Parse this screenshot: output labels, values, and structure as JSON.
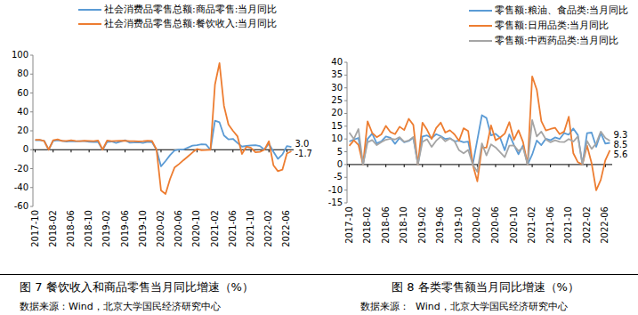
{
  "chart_data": [
    {
      "type": "line",
      "title": "图 7 餐饮收入和商品零售当月同比增速（%）",
      "source": "数据来源：Wind，北京大学国民经济研究中心",
      "categories": [
        "2017-10",
        null,
        null,
        null,
        "2018-02",
        null,
        null,
        null,
        "2018-06",
        null,
        null,
        null,
        "2018-10",
        null,
        null,
        null,
        "2019-02",
        null,
        null,
        null,
        "2019-06",
        null,
        null,
        null,
        "2019-10",
        null,
        null,
        null,
        "2020-02",
        null,
        null,
        null,
        "2020-06",
        null,
        null,
        null,
        "2020-10",
        null,
        null,
        null,
        "2021-02",
        null,
        null,
        null,
        "2021-06",
        null,
        null,
        null,
        "2021-10",
        null,
        null,
        null,
        "2022-02",
        null,
        null,
        null,
        "2022-06",
        null
      ],
      "series": [
        {
          "name": "社会消费品零售总额:商品零售:当月同比",
          "color": "#5b9bd5",
          "values": [
            10.0,
            10.3,
            9.4,
            0,
            9.4,
            10.1,
            9.4,
            8.5,
            9.0,
            8.8,
            9.0,
            9.1,
            8.4,
            8.1,
            8.2,
            0,
            8.2,
            8.7,
            7.2,
            8.6,
            10.0,
            7.5,
            7.6,
            7.8,
            7.2,
            8.3,
            7.9,
            0,
            -17.6,
            -12.0,
            -5.8,
            -0.8,
            0.2,
            0.2,
            2.2,
            4.3,
            4.9,
            5.8,
            5.6,
            0,
            30.7,
            29.0,
            15.1,
            10.9,
            11.5,
            7.2,
            3.3,
            4.0,
            4.6,
            4.8,
            3.9,
            0,
            6.5,
            -2.1,
            -9.7,
            -5.0,
            3.9,
            3.0
          ]
        },
        {
          "name": "社会消费品零售总额:餐饮收入:当月同比",
          "color": "#ed7d31",
          "values": [
            10.5,
            10.4,
            9.2,
            0,
            9.9,
            10.9,
            9.3,
            9.2,
            9.9,
            9.3,
            9.1,
            9.6,
            9.3,
            9.0,
            9.7,
            0,
            9.7,
            9.0,
            9.2,
            9.4,
            9.5,
            9.1,
            9.0,
            8.8,
            9.0,
            9.4,
            9.2,
            0,
            -43.1,
            -46.8,
            -31.1,
            -18.9,
            -15.2,
            -11.0,
            -7.0,
            -2.9,
            0.8,
            -0.6,
            -0.4,
            0,
            68.9,
            91.6,
            46.4,
            26.6,
            20.0,
            14.3,
            -4.5,
            3.1,
            2.0,
            -2.7,
            -2.2,
            0,
            8.9,
            -16.4,
            -22.7,
            -21.1,
            -4.0,
            -1.7
          ]
        }
      ],
      "annotations": [
        {
          "text": "3.0",
          "series": 0,
          "index": 57
        },
        {
          "text": "-1.7",
          "series": 1,
          "index": 57
        }
      ],
      "ylim": [
        -60,
        100
      ],
      "yticks": [
        -60,
        -40,
        -20,
        0,
        20,
        40,
        60,
        80,
        100
      ],
      "grid": false,
      "legend": "top"
    },
    {
      "type": "line",
      "title": "图 8 各类零售额当月同比增速（%）",
      "source": "数据来源：  Wind，北京大学国民经济研究中心",
      "categories": [
        "2017-10",
        null,
        null,
        null,
        "2018-02",
        null,
        null,
        null,
        "2018-06",
        null,
        null,
        null,
        "2018-10",
        null,
        null,
        null,
        "2019-02",
        null,
        null,
        null,
        "2019-06",
        null,
        null,
        null,
        "2019-10",
        null,
        null,
        null,
        "2020-02",
        null,
        null,
        null,
        "2020-06",
        null,
        null,
        null,
        "2020-10",
        null,
        null,
        null,
        "2021-02",
        null,
        null,
        null,
        "2021-06",
        null,
        null,
        null,
        "2021-10",
        null,
        null,
        null,
        "2022-02",
        null,
        null,
        null,
        "2022-06",
        null
      ],
      "series": [
        {
          "name": "零售额:粮油、食品类:当月同比",
          "color": "#5b9bd5",
          "values": [
            9.0,
            9.8,
            10.4,
            0,
            10.0,
            12.1,
            8.3,
            9.1,
            11.0,
            10.5,
            8.1,
            10.4,
            8.7,
            9.2,
            10.5,
            0,
            11.0,
            11.4,
            10.3,
            11.9,
            11.1,
            10.0,
            10.3,
            9.1,
            9.3,
            8.7,
            9.0,
            0,
            9.7,
            19.3,
            18.2,
            11.4,
            12.0,
            10.4,
            5.6,
            11.8,
            7.7,
            4.0,
            7.5,
            0,
            3.9,
            9.4,
            7.6,
            10.1,
            9.5,
            10.6,
            10.0,
            12.3,
            11.7,
            14.1,
            11.5,
            0,
            12.3,
            12.5,
            6.9,
            12.3,
            8.2,
            8.5
          ]
        },
        {
          "name": "零售额:日用品类:当月同比",
          "color": "#ed7d31",
          "values": [
            7.3,
            9.5,
            7.7,
            0,
            16.9,
            12.4,
            10.7,
            11.8,
            15.1,
            12.7,
            11.9,
            14.8,
            13.5,
            17.9,
            15.5,
            0,
            16.4,
            13.6,
            10.0,
            14.3,
            16.4,
            12.5,
            13.4,
            11.8,
            9.3,
            14.2,
            13.1,
            0,
            -6.6,
            6.6,
            6.6,
            15.3,
            9.5,
            10.6,
            12.1,
            16.6,
            9.7,
            13.4,
            8.8,
            0,
            34.5,
            29.3,
            17.0,
            13.3,
            13.9,
            14.4,
            11.9,
            12.9,
            18.7,
            4.4,
            0.9,
            0,
            7.4,
            0.5,
            -10.1,
            -6.0,
            1.7,
            5.6
          ]
        },
        {
          "name": "零售额:中西药品类:当月同比",
          "color": "#a5a5a5",
          "values": [
            12.5,
            10.0,
            13.9,
            0,
            8.7,
            9.6,
            7.6,
            8.8,
            9.7,
            10.1,
            9.8,
            10.7,
            8.9,
            9.4,
            10.8,
            0,
            8.9,
            9.9,
            6.9,
            9.3,
            10.9,
            9.1,
            10.2,
            9.2,
            5.6,
            4.4,
            5.7,
            0,
            -2.8,
            8.3,
            3.6,
            7.9,
            6.7,
            4.8,
            2.9,
            7.4,
            7.5,
            5.3,
            6.7,
            0,
            17.4,
            11.0,
            12.9,
            9.8,
            8.7,
            9.5,
            8.9,
            8.8,
            10.0,
            9.0,
            11.0,
            0,
            9.2,
            6.1,
            8.3,
            12.9,
            10.4,
            9.3
          ]
        }
      ],
      "annotations": [
        {
          "text": "9.3",
          "series": 2,
          "index": 57
        },
        {
          "text": "8.5",
          "series": 0,
          "index": 57
        },
        {
          "text": "5.6",
          "series": 1,
          "index": 57
        }
      ],
      "ylim": [
        -15,
        40
      ],
      "yticks": [
        -15,
        -10,
        -5,
        0,
        5,
        10,
        15,
        20,
        25,
        30,
        35,
        40
      ],
      "grid": false,
      "legend": "top"
    }
  ]
}
